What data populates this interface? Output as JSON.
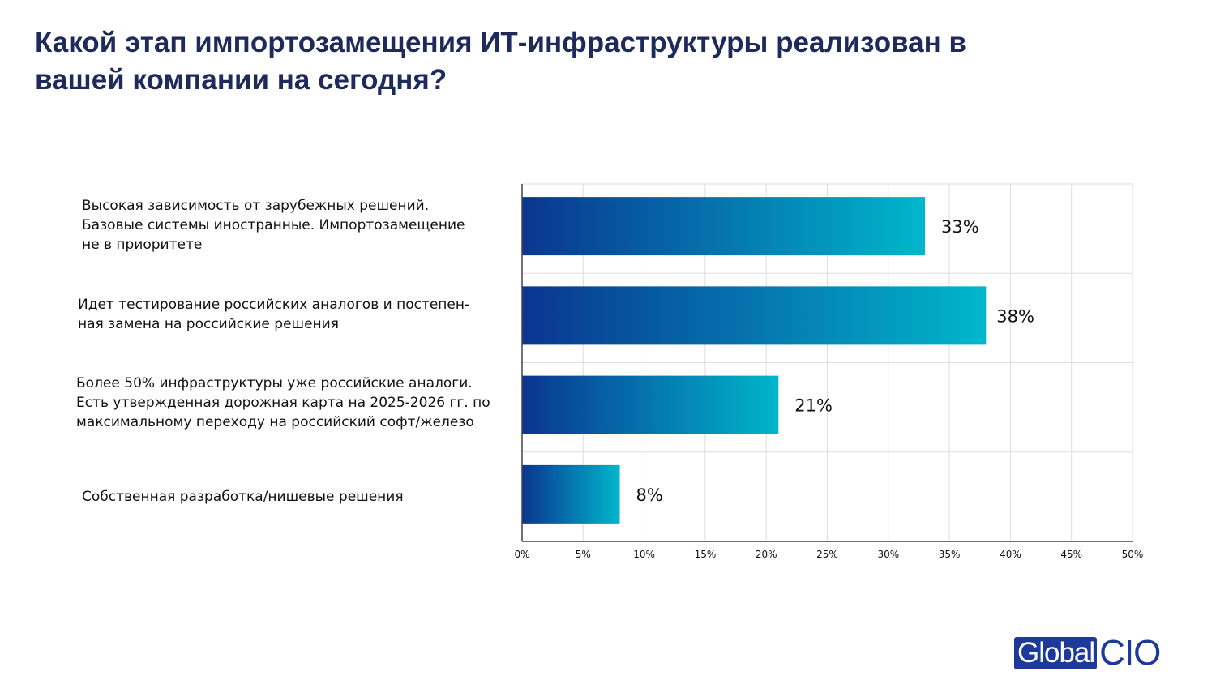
{
  "chart_data": {
    "type": "bar",
    "orientation": "horizontal",
    "title": "Какой этап импортозамещения ИТ-инфраструктуры реализован в\nвашей компании на сегодня?",
    "categories": [
      "Высокая зависимость от зарубежных решений.\nБазовые системы иностранные. Импортозамещение\nне в приоритете",
      "Идет тестирование российских аналогов и постепен-\nная замена на российские решения",
      "Более 50% инфраструктуры уже российские аналоги.\nЕсть утвержденная дорожная карта на 2025-2026 гг. по\nмаксимальному переходу на российский софт/железо",
      "Собственная разработка/нишевые решения"
    ],
    "values": [
      33,
      38,
      21,
      8
    ],
    "data_labels": [
      "33%",
      "38%",
      "21%",
      "8%"
    ],
    "x_ticks": [
      "0%",
      "5%",
      "10%",
      "15%",
      "20%",
      "25%",
      "30%",
      "35%",
      "40%",
      "45%",
      "50%"
    ],
    "xlim": [
      0,
      50
    ],
    "grid": true,
    "gradient_colors": [
      "#0a3590",
      "#00b6cc"
    ],
    "xlabel": "",
    "ylabel": ""
  },
  "brand": {
    "logo_left": "Global",
    "logo_right": "CIO",
    "color": "#1d3a9a"
  }
}
